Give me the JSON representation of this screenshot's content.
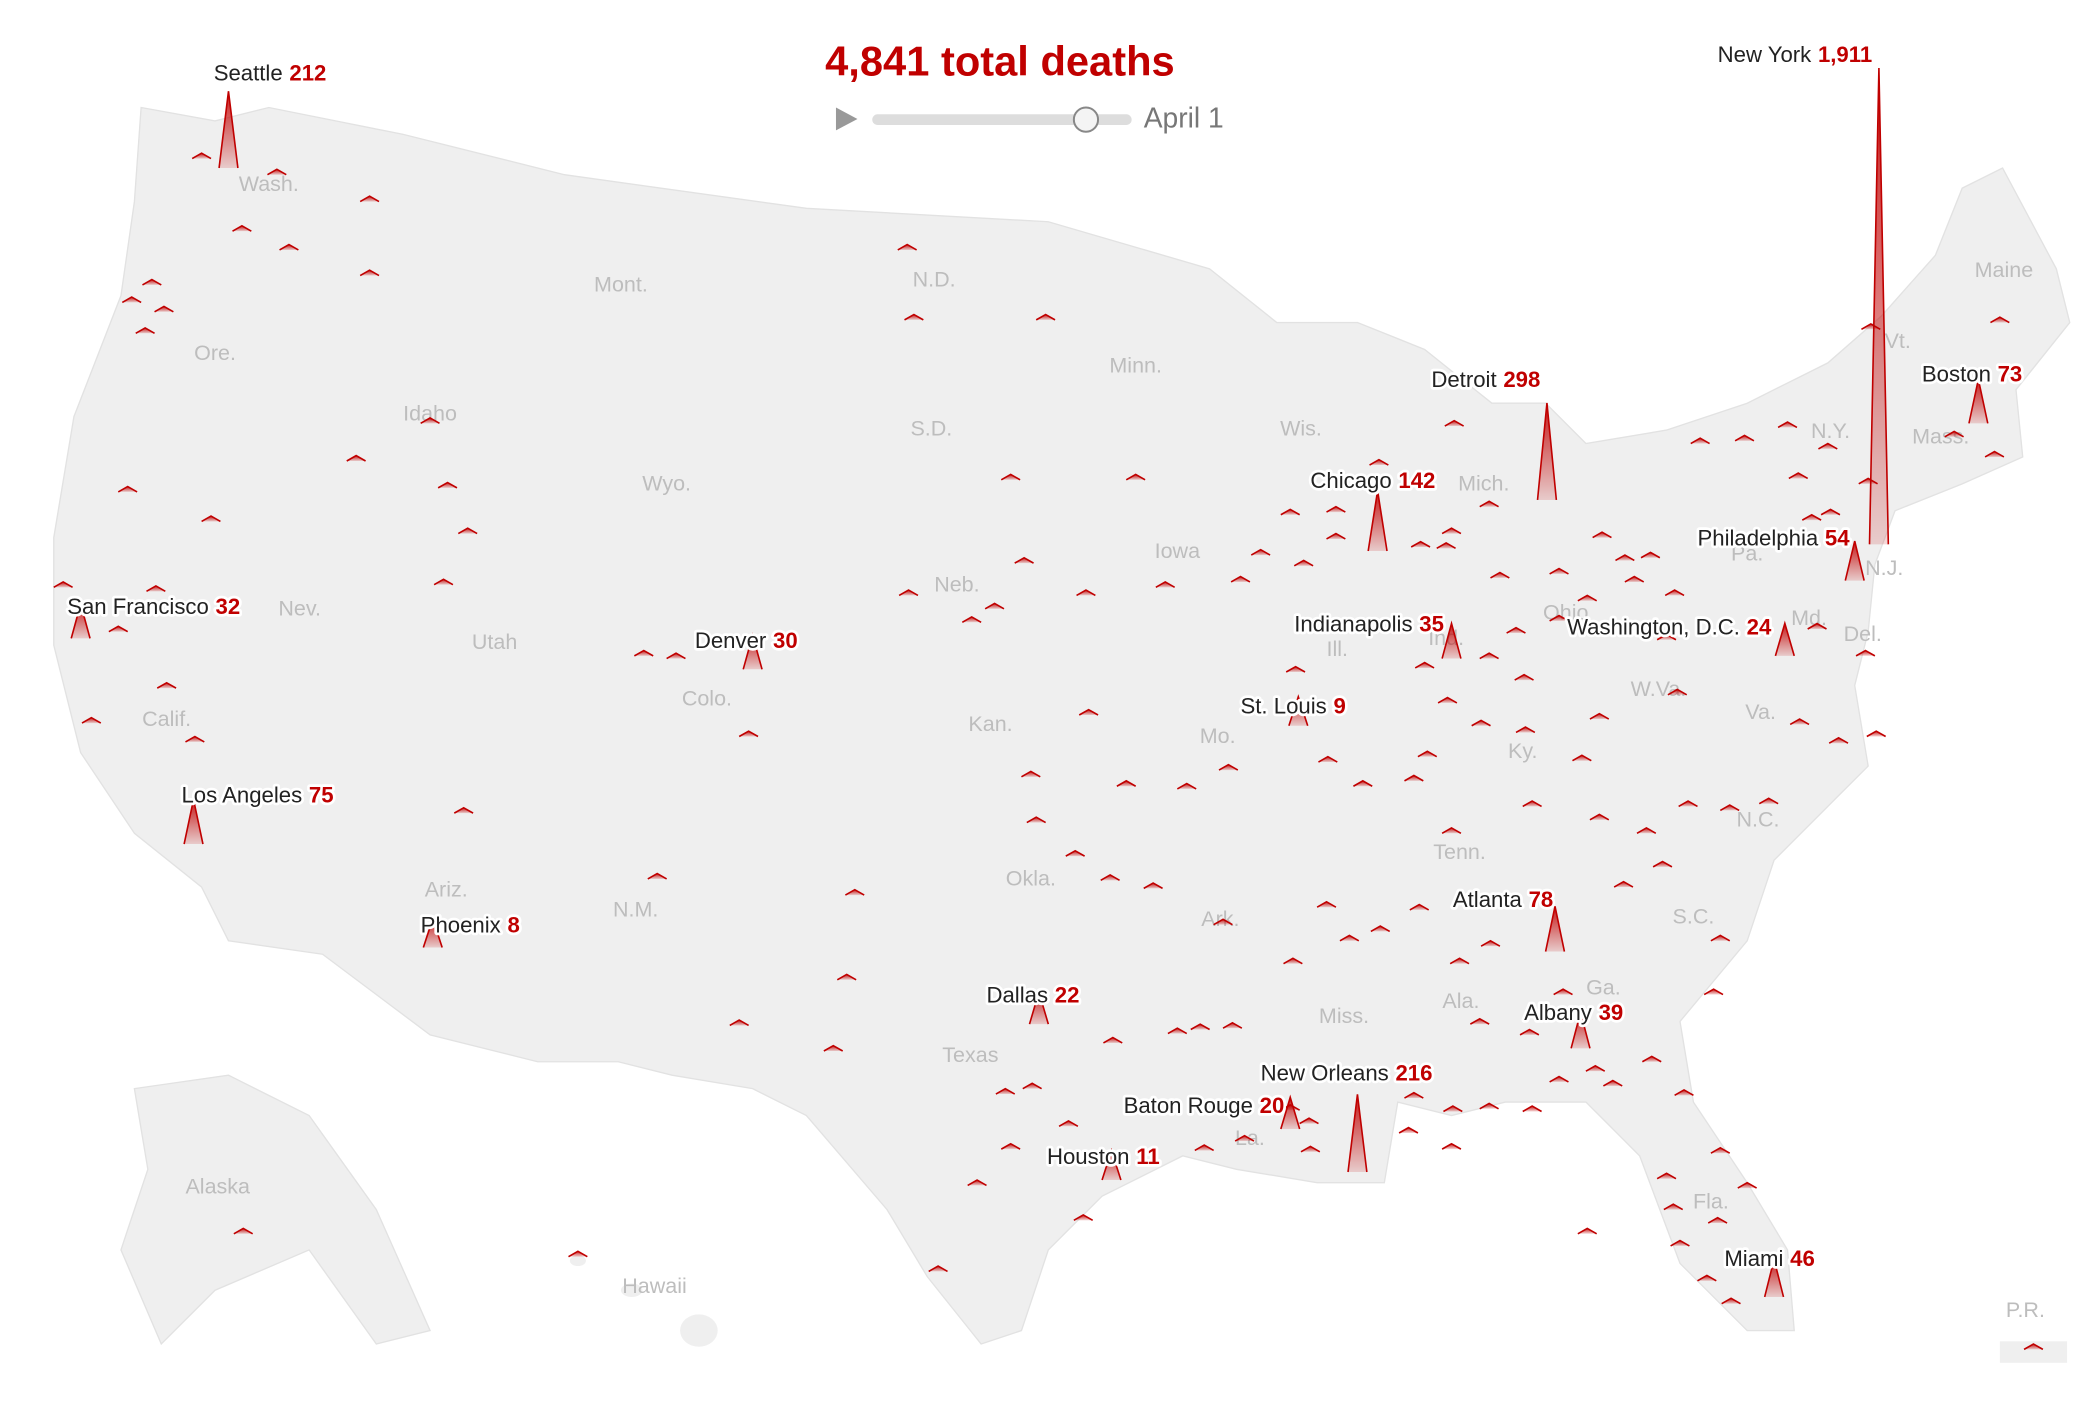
{
  "chart_data": {
    "type": "spike_map",
    "title": "4,841 total deaths",
    "date": "April 1",
    "color": "#c00000",
    "categories": [
      "Seattle",
      "New York",
      "Detroit",
      "Boston",
      "Chicago",
      "Philadelphia",
      "San Francisco",
      "Denver",
      "Indianapolis",
      "Washington, D.C.",
      "St. Louis",
      "Los Angeles",
      "Atlanta",
      "Phoenix",
      "Dallas",
      "Albany",
      "New Orleans",
      "Baton Rouge",
      "Houston",
      "Miami"
    ],
    "values": [
      212,
      1911,
      298,
      73,
      142,
      54,
      32,
      30,
      35,
      24,
      9,
      75,
      78,
      8,
      22,
      39,
      216,
      20,
      11,
      46
    ],
    "value_labels": [
      "212",
      "1,911",
      "298",
      "73",
      "142",
      "54",
      "32",
      "30",
      "35",
      "24",
      "9",
      "75",
      "78",
      "8",
      "22",
      "39",
      "216",
      "20",
      "11",
      "46"
    ],
    "region_labels": [
      "Wash.",
      "Ore.",
      "Calif.",
      "Nev.",
      "Idaho",
      "Mont.",
      "Wyo.",
      "Utah",
      "Ariz.",
      "Colo.",
      "N.M.",
      "N.D.",
      "S.D.",
      "Neb.",
      "Kan.",
      "Okla.",
      "Texas",
      "Minn.",
      "Iowa",
      "Mo.",
      "Ark.",
      "La.",
      "Wis.",
      "Ill.",
      "Ind.",
      "Mich.",
      "Ohio",
      "Ky.",
      "Tenn.",
      "Miss.",
      "Ala.",
      "Ga.",
      "Fla.",
      "S.C.",
      "N.C.",
      "Va.",
      "W.Va.",
      "Pa.",
      "N.Y.",
      "Maine",
      "Vt.",
      "N.J.",
      "Del.",
      "Md.",
      "Mass.",
      "Alaska",
      "Hawaii",
      "P.R."
    ]
  }
}
